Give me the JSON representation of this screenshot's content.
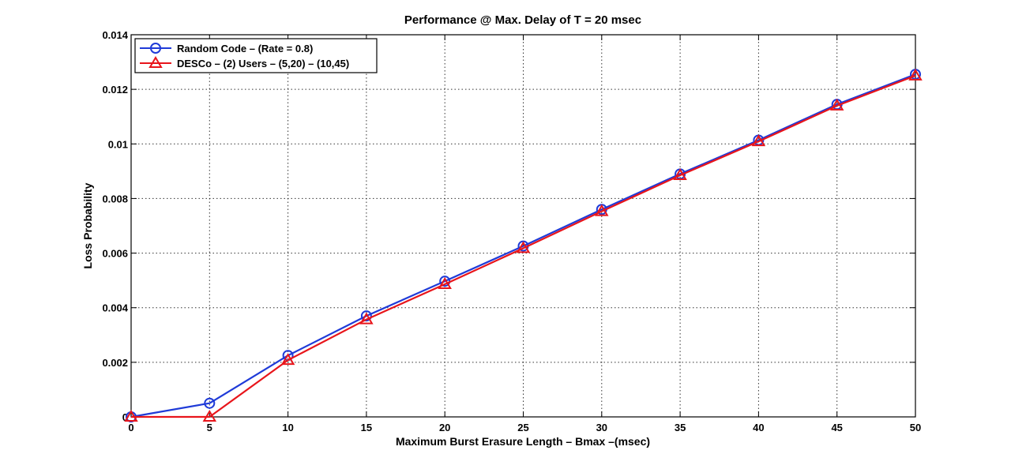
{
  "chart_data": {
    "type": "line",
    "title": "Performance @ Max. Delay of T = 20 msec",
    "xlabel": "Maximum Burst Erasure Length – Bmax –(msec)",
    "ylabel": "Loss Probability",
    "xlim": [
      0,
      50
    ],
    "ylim": [
      0,
      0.014
    ],
    "grid": true,
    "legend_position": "top-left",
    "x_ticks": [
      0,
      5,
      10,
      15,
      20,
      25,
      30,
      35,
      40,
      45,
      50
    ],
    "x_tick_labels": [
      "0",
      "5",
      "10",
      "15",
      "20",
      "25",
      "30",
      "35",
      "40",
      "45",
      "50"
    ],
    "y_ticks": [
      0,
      0.002,
      0.004,
      0.006,
      0.008,
      0.01,
      0.012,
      0.014
    ],
    "y_tick_labels": [
      "0",
      "0.002",
      "0.004",
      "0.006",
      "0.008",
      "0.01",
      "0.012",
      "0.014"
    ],
    "x": [
      0,
      5,
      10,
      15,
      20,
      25,
      30,
      35,
      40,
      45,
      50
    ],
    "series": [
      {
        "name": "Random Code – (Rate = 0.8)",
        "color": "#1f3bd8",
        "marker": "circle",
        "values": [
          0,
          0.0005,
          0.00225,
          0.0037,
          0.00497,
          0.00626,
          0.0076,
          0.0089,
          0.01014,
          0.01145,
          0.01255
        ]
      },
      {
        "name": "DESCo – (2) Users – (5,20) – (10,45)",
        "color": "#e8151b",
        "marker": "triangle",
        "values": [
          0,
          0,
          0.00208,
          0.00357,
          0.00486,
          0.00618,
          0.00753,
          0.00885,
          0.01009,
          0.0114,
          0.0125
        ]
      }
    ]
  }
}
